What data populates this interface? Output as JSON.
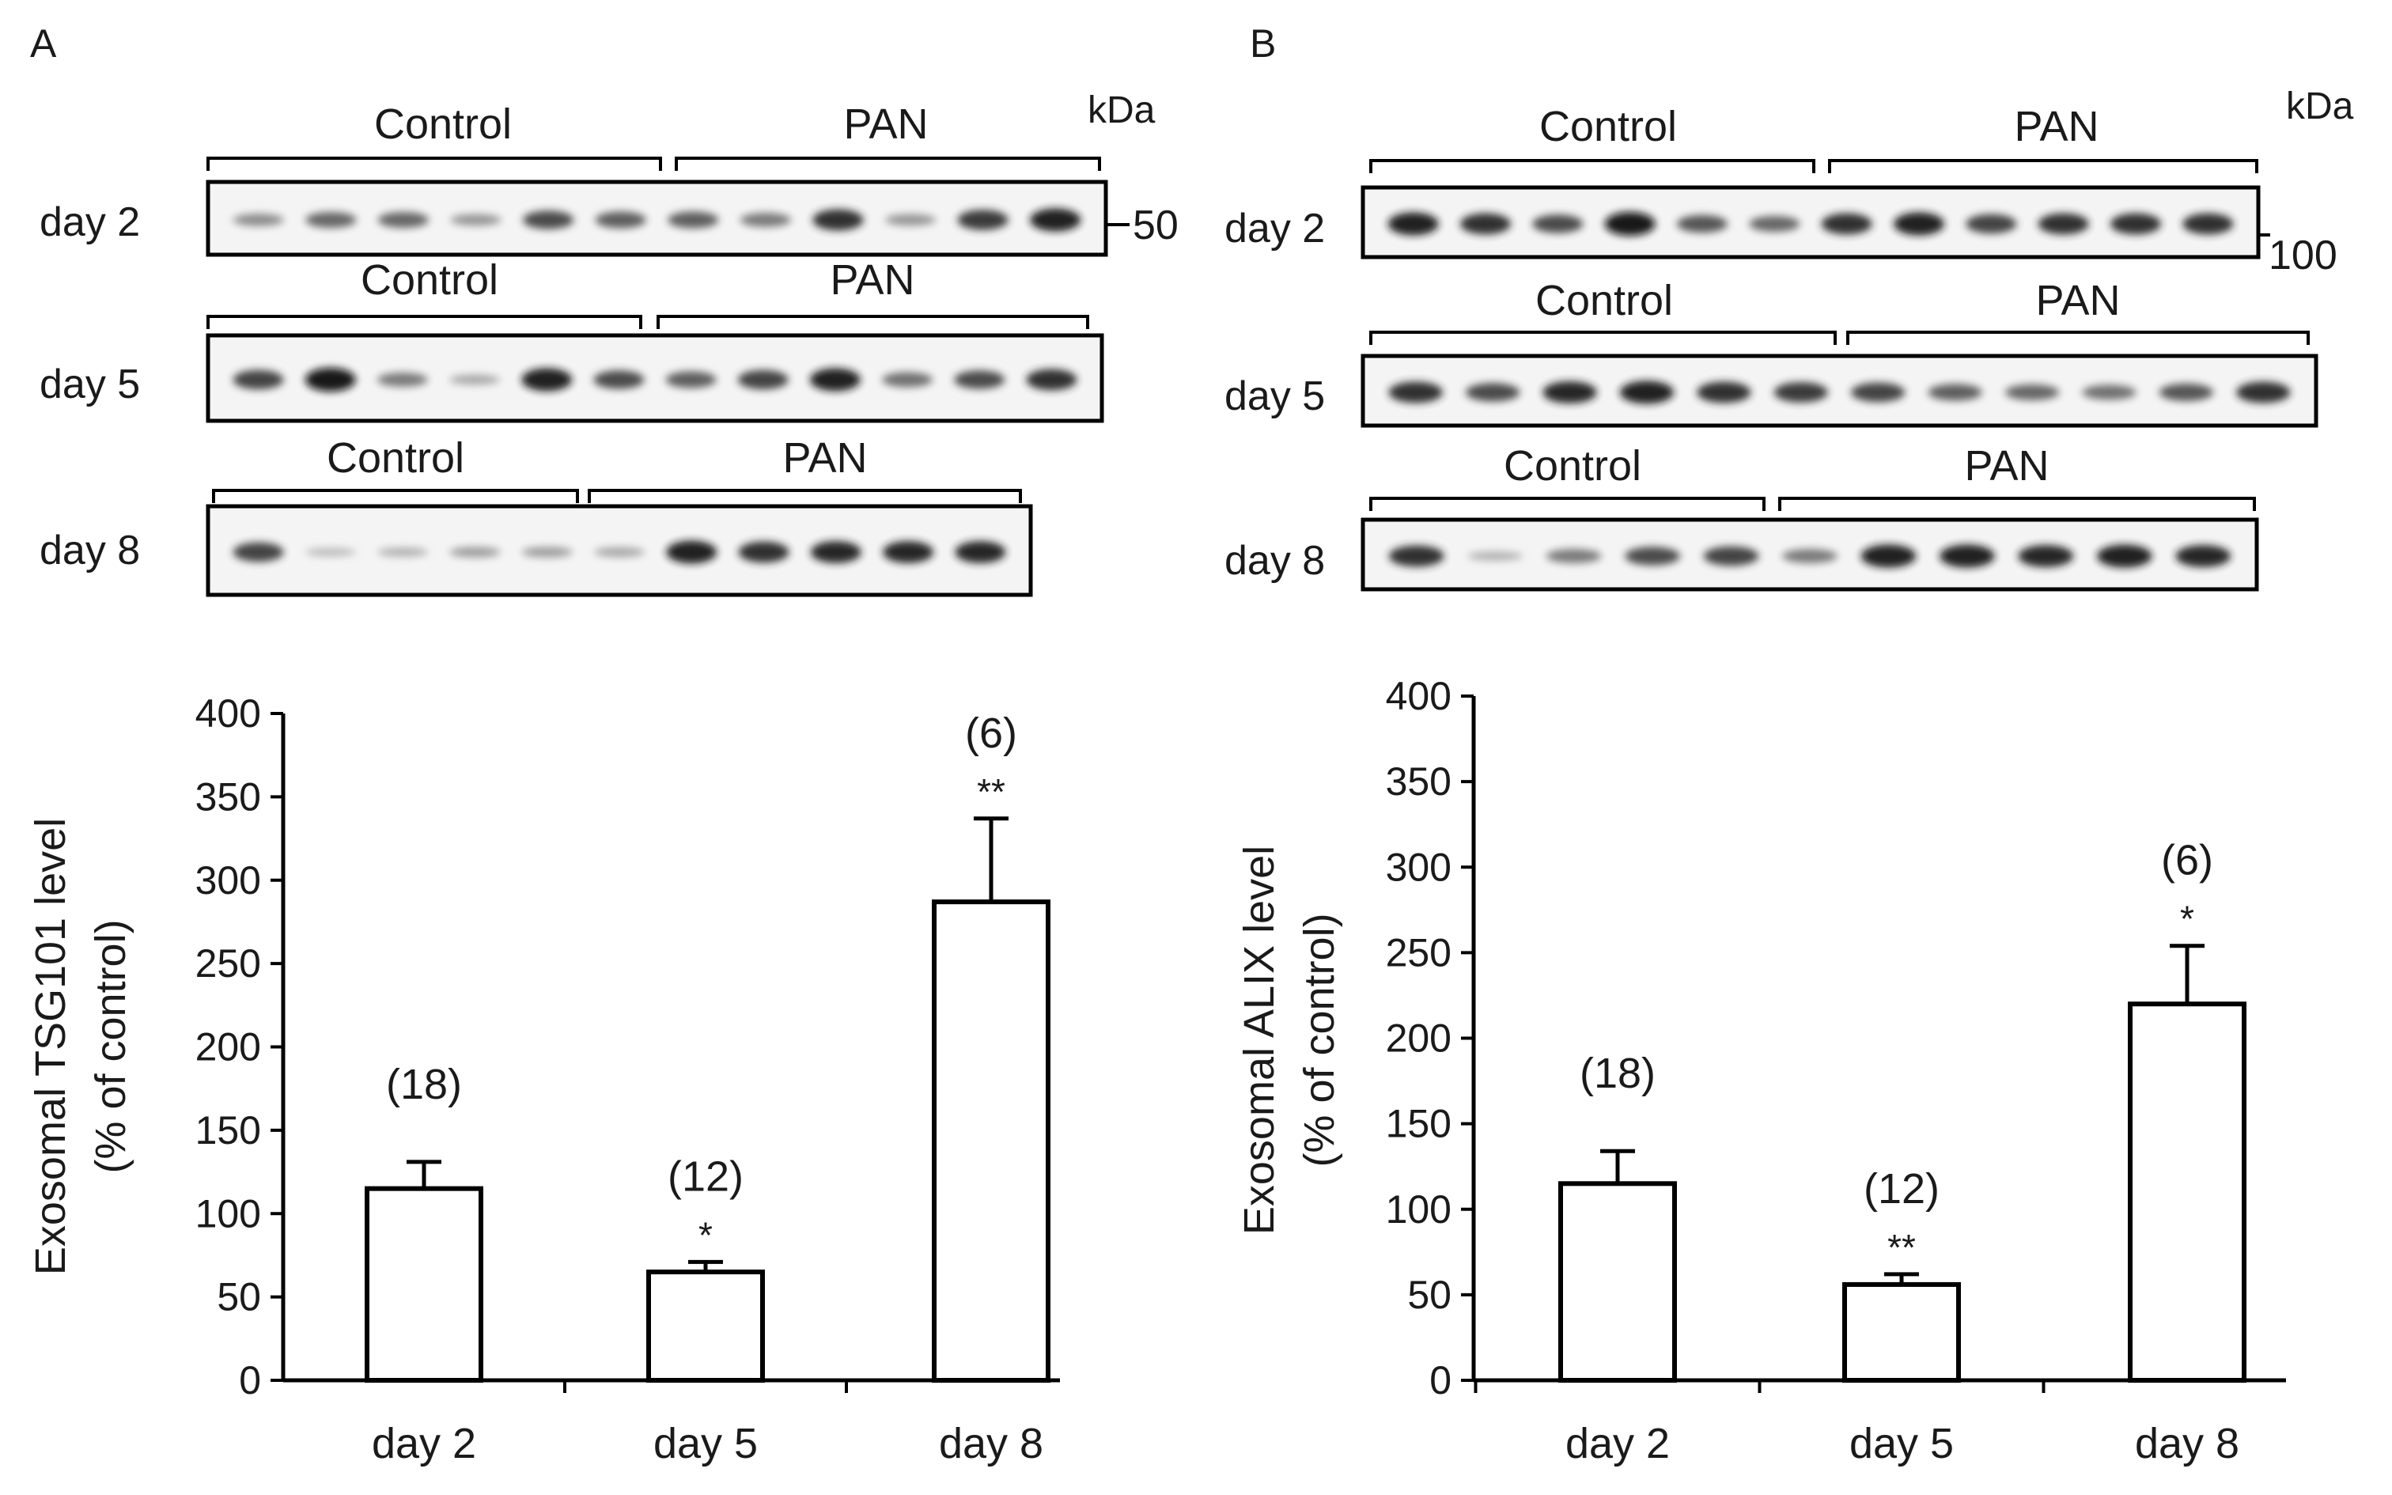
{
  "panels": [
    {
      "letter": "A",
      "kda_label": "kDa",
      "marker": "50",
      "blots": [
        {
          "day": "day 2",
          "control_label": "Control",
          "pan_label": "PAN",
          "lanes": [
            0.35,
            0.55,
            0.55,
            0.3,
            0.7,
            0.6,
            0.6,
            0.45,
            0.85,
            0.3,
            0.8,
            0.95
          ]
        },
        {
          "day": "day 5",
          "control_label": "Control",
          "pan_label": "PAN",
          "lanes": [
            0.75,
            1.0,
            0.45,
            0.2,
            0.95,
            0.7,
            0.6,
            0.75,
            0.95,
            0.5,
            0.7,
            0.85
          ]
        },
        {
          "day": "day 8",
          "control_label": "Control",
          "pan_label": "PAN",
          "lanes": [
            0.75,
            0.1,
            0.15,
            0.25,
            0.25,
            0.2,
            0.95,
            0.85,
            0.9,
            0.9,
            0.9
          ]
        }
      ],
      "chart": {
        "type": "bar",
        "categories": [
          "day 2",
          "day 5",
          "day 8"
        ],
        "values": [
          115,
          65,
          287
        ],
        "errors": [
          16,
          6,
          50
        ],
        "n_labels": [
          "(18)",
          "(12)",
          "(6)"
        ],
        "significance": [
          "",
          "*",
          "**"
        ],
        "ylim": [
          0,
          400
        ],
        "yticks": [
          0,
          50,
          100,
          150,
          200,
          250,
          300,
          350,
          400
        ],
        "ylabel_line1": "Exosomal TSG101 level",
        "ylabel_line2": "(% of control)"
      }
    },
    {
      "letter": "B",
      "kda_label": "kDa",
      "marker": "100",
      "blots": [
        {
          "day": "day 2",
          "control_label": "Control",
          "pan_label": "PAN",
          "lanes": [
            0.95,
            0.85,
            0.7,
            1.0,
            0.65,
            0.55,
            0.85,
            0.95,
            0.75,
            0.85,
            0.85,
            0.85
          ]
        },
        {
          "day": "day 5",
          "control_label": "Control",
          "pan_label": "PAN",
          "lanes": [
            0.85,
            0.7,
            0.9,
            0.95,
            0.85,
            0.8,
            0.75,
            0.6,
            0.55,
            0.5,
            0.65,
            0.85
          ]
        },
        {
          "day": "day 8",
          "control_label": "Control",
          "pan_label": "PAN",
          "lanes": [
            0.85,
            0.15,
            0.45,
            0.7,
            0.75,
            0.45,
            0.95,
            0.95,
            0.9,
            0.95,
            0.9
          ]
        }
      ],
      "chart": {
        "type": "bar",
        "categories": [
          "day 2",
          "day 5",
          "day 8"
        ],
        "values": [
          115,
          56,
          220
        ],
        "errors": [
          19,
          6,
          34
        ],
        "n_labels": [
          "(18)",
          "(12)",
          "(6)"
        ],
        "significance": [
          "",
          "**",
          "*"
        ],
        "ylim": [
          0,
          400
        ],
        "yticks": [
          0,
          50,
          100,
          150,
          200,
          250,
          300,
          350,
          400
        ],
        "ylabel_line1": "Exosomal ALIX  level",
        "ylabel_line2": "(% of control)"
      }
    }
  ],
  "chart_data": [
    {
      "type": "bar",
      "categories": [
        "day 2",
        "day 5",
        "day 8"
      ],
      "values": [
        115,
        65,
        287
      ],
      "errors": [
        16,
        6,
        50
      ],
      "annotations": [
        "(18)",
        "(12) *",
        "(6) **"
      ],
      "title": "",
      "xlabel": "",
      "ylabel": "Exosomal TSG101 level (% of control)",
      "ylim": [
        0,
        400
      ]
    },
    {
      "type": "bar",
      "categories": [
        "day 2",
        "day 5",
        "day 8"
      ],
      "values": [
        115,
        56,
        220
      ],
      "errors": [
        19,
        6,
        34
      ],
      "annotations": [
        "(18)",
        "(12) **",
        "(6) *"
      ],
      "title": "",
      "xlabel": "",
      "ylabel": "Exosomal ALIX  level (% of control)",
      "ylim": [
        0,
        400
      ]
    }
  ]
}
